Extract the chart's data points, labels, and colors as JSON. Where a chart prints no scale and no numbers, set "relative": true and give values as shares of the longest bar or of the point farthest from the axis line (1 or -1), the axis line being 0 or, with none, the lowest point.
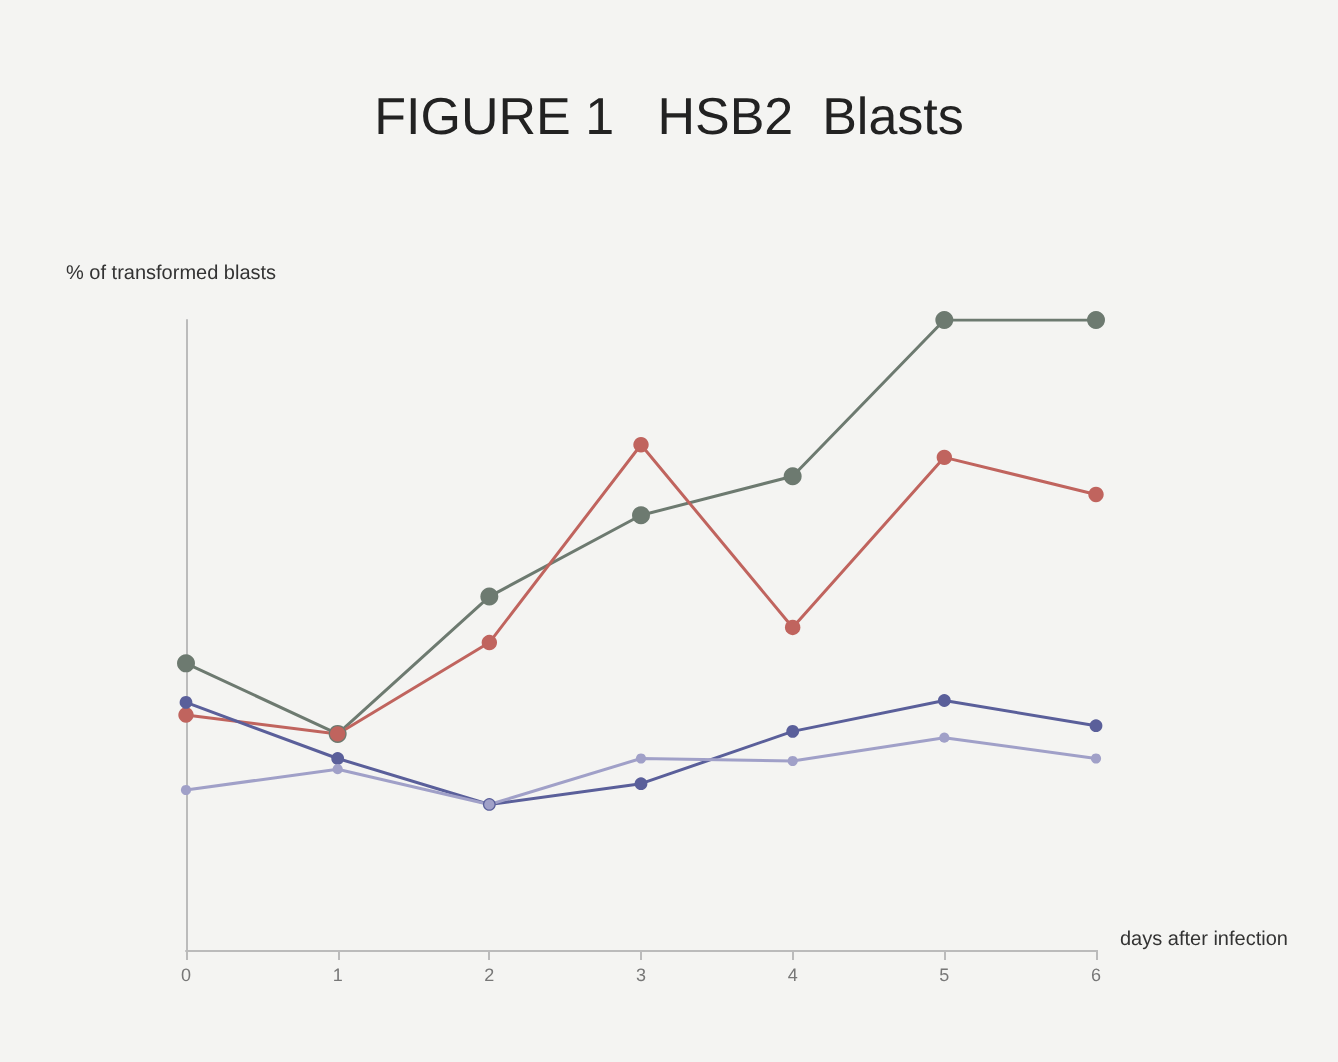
{
  "chart_data": {
    "type": "line",
    "title": "FIGURE 1   HSB2  Blasts",
    "ylabel": "% of transformed blasts",
    "xlabel": "days after infection",
    "relative": true,
    "categories": [
      "0",
      "1",
      "2",
      "3",
      "4",
      "5",
      "6"
    ],
    "marker": "circle",
    "line_style": "solid",
    "grid": false,
    "series": [
      {
        "color": "#6d7a70",
        "values": [
          0.455,
          0.343,
          0.561,
          0.69,
          0.752,
          1,
          1
        ]
      },
      {
        "color": "#c0645e",
        "values": [
          0.373,
          0.343,
          0.488,
          0.802,
          0.512,
          0.782,
          0.723
        ]
      },
      {
        "color": "#5a5f9a",
        "values": [
          0.393,
          0.304,
          0.231,
          0.264,
          0.347,
          0.396,
          0.356
        ]
      },
      {
        "color": "#a0a0c8",
        "values": [
          0.254,
          0.287,
          0.231,
          0.304,
          0.3,
          0.337,
          0.304
        ]
      }
    ]
  }
}
